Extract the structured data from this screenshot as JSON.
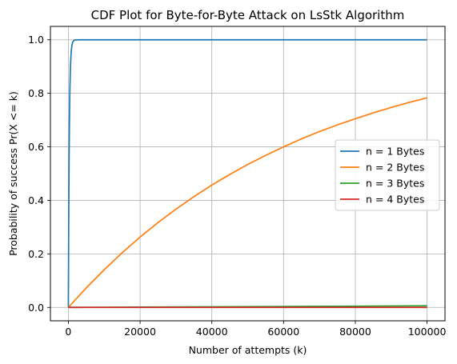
{
  "chart_data": {
    "type": "line",
    "title": "CDF Plot for Byte-for-Byte Attack on LsStk Algorithm",
    "xlabel": "Number of attempts (k)",
    "ylabel": "Probability of success Pr(X <= k)",
    "xlim": [
      -5000,
      105000
    ],
    "ylim": [
      -0.05,
      1.05
    ],
    "xticks": [
      0,
      20000,
      40000,
      60000,
      80000,
      100000
    ],
    "xtick_labels": [
      "0",
      "20000",
      "40000",
      "60000",
      "80000",
      "100000"
    ],
    "yticks": [
      0.0,
      0.2,
      0.4,
      0.6,
      0.8,
      1.0
    ],
    "ytick_labels": [
      "0.0",
      "0.2",
      "0.4",
      "0.6",
      "0.8",
      "1.0"
    ],
    "grid": true,
    "legend_position": "center-right",
    "series": [
      {
        "name": "n = 1 Bytes",
        "color": "#1f77b4",
        "x": [
          0,
          100,
          200,
          300,
          400,
          500,
          600,
          800,
          1000,
          1200,
          1500,
          2000,
          3000,
          5000,
          10000,
          20000,
          40000,
          60000,
          80000,
          100000
        ],
        "y": [
          0.0,
          0.324,
          0.543,
          0.691,
          0.791,
          0.859,
          0.905,
          0.957,
          0.98,
          0.991,
          0.997,
          0.9996,
          1.0,
          1.0,
          1.0,
          1.0,
          1.0,
          1.0,
          1.0,
          1.0
        ]
      },
      {
        "name": "n = 2 Bytes",
        "color": "#ff7f0e",
        "x": [
          0,
          5000,
          10000,
          15000,
          20000,
          25000,
          30000,
          35000,
          40000,
          45000,
          50000,
          55000,
          60000,
          65000,
          70000,
          75000,
          80000,
          85000,
          90000,
          95000,
          100000
        ],
        "y": [
          0.0,
          0.073,
          0.141,
          0.204,
          0.263,
          0.317,
          0.367,
          0.414,
          0.457,
          0.497,
          0.534,
          0.568,
          0.6,
          0.63,
          0.657,
          0.682,
          0.705,
          0.727,
          0.747,
          0.766,
          0.783
        ]
      },
      {
        "name": "n = 3 Bytes",
        "color": "#2ca02c",
        "x": [
          0,
          20000,
          40000,
          60000,
          80000,
          100000
        ],
        "y": [
          0.0,
          0.0012,
          0.0024,
          0.0036,
          0.0048,
          0.006
        ]
      },
      {
        "name": "n = 4 Bytes",
        "color": "#d62728",
        "x": [
          0,
          20000,
          40000,
          60000,
          80000,
          100000
        ],
        "y": [
          0.0,
          0.0,
          0.0,
          0.0,
          0.0,
          0.0
        ]
      }
    ]
  }
}
